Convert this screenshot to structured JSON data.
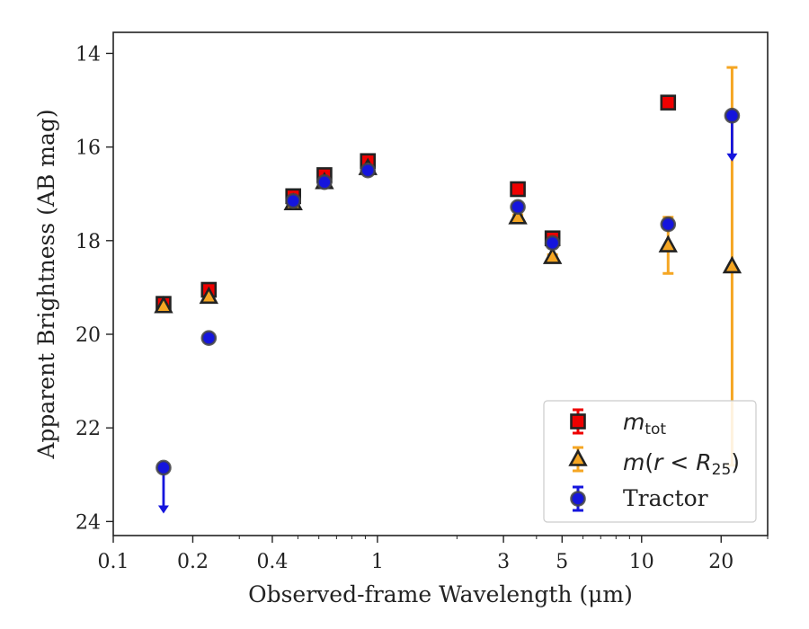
{
  "chart_data": {
    "type": "scatter",
    "xlabel": "Observed-frame Wavelength (μm)",
    "ylabel": "Apparent Brightness (AB mag)",
    "x_scale": "log",
    "y_inverted": true,
    "xlim": [
      0.1,
      30
    ],
    "ylim": [
      24.3,
      13.55
    ],
    "x_ticks": [
      0.1,
      0.2,
      0.4,
      1,
      3,
      5,
      10,
      20
    ],
    "x_tick_labels": [
      "0.1",
      "0.2",
      "0.4",
      "1",
      "3",
      "5",
      "10",
      "20"
    ],
    "y_ticks": [
      14,
      16,
      18,
      20,
      22,
      24
    ],
    "y_tick_labels": [
      "14",
      "16",
      "18",
      "20",
      "22",
      "24"
    ],
    "legend_position": "lower right",
    "grid": false,
    "series": [
      {
        "name": "m_tot",
        "marker": "square",
        "color": "#ee0000",
        "edge_color": "#222222",
        "points": [
          {
            "x": 0.155,
            "y": 19.35,
            "err": 0.05
          },
          {
            "x": 0.23,
            "y": 19.05,
            "err": 0.05
          },
          {
            "x": 0.48,
            "y": 17.05,
            "err": 0.05
          },
          {
            "x": 0.63,
            "y": 16.6,
            "err": 0.05
          },
          {
            "x": 0.92,
            "y": 16.3,
            "err": 0.05
          },
          {
            "x": 3.4,
            "y": 16.9,
            "err": 0.05
          },
          {
            "x": 4.6,
            "y": 17.95,
            "err": 0.05
          },
          {
            "x": 12.6,
            "y": 15.05,
            "err": 0.05
          }
        ]
      },
      {
        "name": "m(r < R25)",
        "marker": "triangle",
        "color": "#f5a623",
        "edge_color": "#222222",
        "points": [
          {
            "x": 0.155,
            "y": 19.4,
            "err": 0.05
          },
          {
            "x": 0.23,
            "y": 19.2,
            "err": 0.05
          },
          {
            "x": 0.48,
            "y": 17.2,
            "err": 0.05
          },
          {
            "x": 0.63,
            "y": 16.75,
            "err": 0.05
          },
          {
            "x": 0.92,
            "y": 16.45,
            "err": 0.05
          },
          {
            "x": 3.4,
            "y": 17.5,
            "err": 0.05
          },
          {
            "x": 4.6,
            "y": 18.35,
            "err": 0.05
          },
          {
            "x": 12.6,
            "y": 18.1,
            "err_low": 0.6,
            "err_high": 0.6
          },
          {
            "x": 22.0,
            "y": 18.55,
            "err_low": 4.25,
            "err_high": 4.25
          }
        ]
      },
      {
        "name": "Tractor",
        "marker": "circle",
        "color": "#1515dd",
        "edge_color": "#444444",
        "points": [
          {
            "x": 0.155,
            "y": 22.85,
            "upper_limit": true
          },
          {
            "x": 0.23,
            "y": 20.08,
            "err": 0.05
          },
          {
            "x": 0.48,
            "y": 17.15,
            "err": 0.05
          },
          {
            "x": 0.63,
            "y": 16.75,
            "err": 0.05
          },
          {
            "x": 0.92,
            "y": 16.5,
            "err": 0.05
          },
          {
            "x": 3.4,
            "y": 17.28,
            "err": 0.05
          },
          {
            "x": 4.6,
            "y": 18.05,
            "err": 0.05
          },
          {
            "x": 12.6,
            "y": 17.65,
            "err": 0.05
          },
          {
            "x": 22.0,
            "y": 15.33,
            "upper_limit": true
          }
        ]
      }
    ]
  },
  "legend": {
    "m_tot_main": "m",
    "m_tot_sub": "tot",
    "m_r_prefix": "m",
    "m_r_paren_open": "(",
    "m_r_var": "r",
    "m_r_lt": " < ",
    "m_r_R": "R",
    "m_r_R_sub": "25",
    "m_r_paren_close": ")",
    "tractor": "Tractor"
  }
}
